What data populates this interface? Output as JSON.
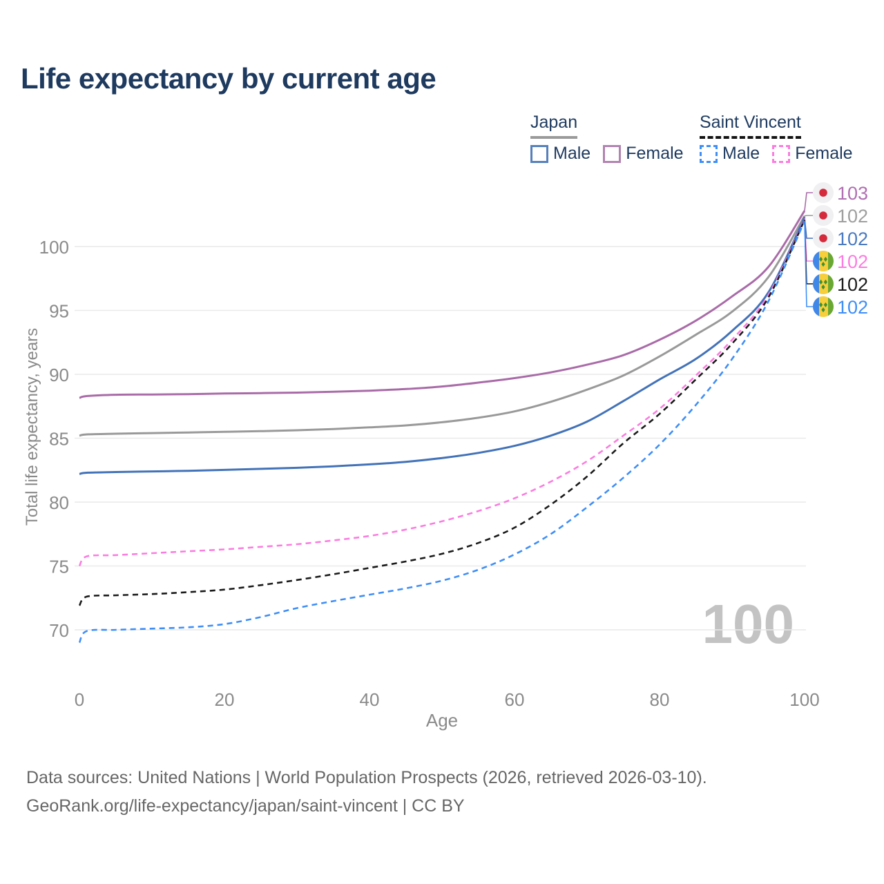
{
  "title": "Life expectancy by current age",
  "legend": {
    "japan": {
      "title": "Japan",
      "male": "Male",
      "female": "Female"
    },
    "saint_vincent": {
      "title": "Saint Vincent",
      "male": "Male",
      "female": "Female"
    }
  },
  "watermark": "100",
  "footer": {
    "line1": "Data sources: United Nations | World Population Prospects (2026, retrieved 2026-03-10).",
    "line2": "GeoRank.org/life-expectancy/japan/saint-vincent | CC BY"
  },
  "colors": {
    "title_text": "#1e3a5f",
    "axis_text": "#8a8a8a",
    "gridline": "#e9e9e9",
    "watermark": "#c3c3c3",
    "japan_flag_bg": "#f0f0f2",
    "japan_flag_dot": "#d42a3c",
    "sv_flag_blue": "#3f87e8",
    "sv_flag_yellow": "#f7cf3c",
    "sv_flag_green": "#69a832",
    "sv_flag_diamond": "#3f9132"
  },
  "chart_data": {
    "type": "line",
    "title": "Life expectancy by current age",
    "xlabel": "Age",
    "ylabel": "Total life expectancy, years",
    "x_ticks": [
      0,
      20,
      40,
      60,
      80,
      100
    ],
    "y_ticks": [
      70,
      75,
      80,
      85,
      90,
      95,
      100
    ],
    "xlim": [
      0,
      100
    ],
    "ylim": [
      68.5,
      103.5
    ],
    "grid": "horizontal-only",
    "legend_position": "top-right",
    "hover_x_value": "100",
    "ages": [
      0,
      1,
      5,
      10,
      15,
      20,
      25,
      30,
      35,
      40,
      45,
      50,
      55,
      60,
      65,
      70,
      75,
      80,
      85,
      90,
      95,
      100
    ],
    "series": [
      {
        "name": "Japan Female",
        "country": "japan",
        "line_color": "#a96ba8",
        "dashed": false,
        "end_label": "103",
        "label_color": "#b06fb2",
        "values": [
          88.15,
          88.3,
          88.4,
          88.42,
          88.45,
          88.5,
          88.53,
          88.57,
          88.63,
          88.72,
          88.85,
          89.05,
          89.35,
          89.7,
          90.15,
          90.75,
          91.5,
          92.7,
          94.2,
          96.1,
          98.4,
          102.8
        ]
      },
      {
        "name": "Japan Both sexes",
        "country": "japan",
        "line_color": "#999999",
        "dashed": false,
        "end_label": "102",
        "label_color": "#9e9e9e",
        "values": [
          85.2,
          85.3,
          85.35,
          85.4,
          85.45,
          85.5,
          85.55,
          85.62,
          85.72,
          85.85,
          86.0,
          86.25,
          86.6,
          87.1,
          87.85,
          88.8,
          89.9,
          91.4,
          93.1,
          94.9,
          97.6,
          102.4
        ]
      },
      {
        "name": "Japan Male",
        "country": "japan",
        "line_color": "#4272b8",
        "dashed": false,
        "end_label": "102",
        "label_color": "#4a7ac2",
        "values": [
          82.2,
          82.3,
          82.35,
          82.4,
          82.45,
          82.52,
          82.6,
          82.68,
          82.8,
          82.95,
          83.15,
          83.45,
          83.85,
          84.4,
          85.2,
          86.3,
          87.9,
          89.6,
          91.2,
          93.4,
          96.4,
          102.3
        ]
      },
      {
        "name": "Saint Vincent Female",
        "country": "saint-vincent",
        "line_color": "#fb7ce0",
        "dashed": true,
        "end_label": "102",
        "label_color": "#fb7ce0",
        "values": [
          75.0,
          75.75,
          75.85,
          76.0,
          76.15,
          76.3,
          76.5,
          76.7,
          77.0,
          77.35,
          77.85,
          78.5,
          79.3,
          80.3,
          81.6,
          83.2,
          85.2,
          87.3,
          89.9,
          92.7,
          96.2,
          102.2
        ]
      },
      {
        "name": "Saint Vincent Both sexes",
        "country": "saint-vincent",
        "line_color": "#1a1a1a",
        "dashed": true,
        "end_label": "102",
        "label_color": "#1a1a1a",
        "values": [
          71.9,
          72.6,
          72.7,
          72.8,
          72.95,
          73.15,
          73.5,
          73.9,
          74.35,
          74.85,
          75.35,
          75.95,
          76.8,
          78.0,
          79.8,
          82.0,
          84.6,
          86.9,
          89.6,
          92.4,
          96.0,
          102.1
        ]
      },
      {
        "name": "Saint Vincent Male",
        "country": "saint-vincent",
        "line_color": "#3e8ef7",
        "dashed": true,
        "end_label": "102",
        "label_color": "#3e8ef7",
        "values": [
          69.0,
          69.9,
          70.0,
          70.1,
          70.2,
          70.45,
          71.0,
          71.7,
          72.25,
          72.75,
          73.25,
          73.85,
          74.7,
          75.9,
          77.5,
          79.6,
          81.9,
          84.5,
          87.6,
          91.2,
          95.7,
          102.0
        ]
      }
    ]
  }
}
